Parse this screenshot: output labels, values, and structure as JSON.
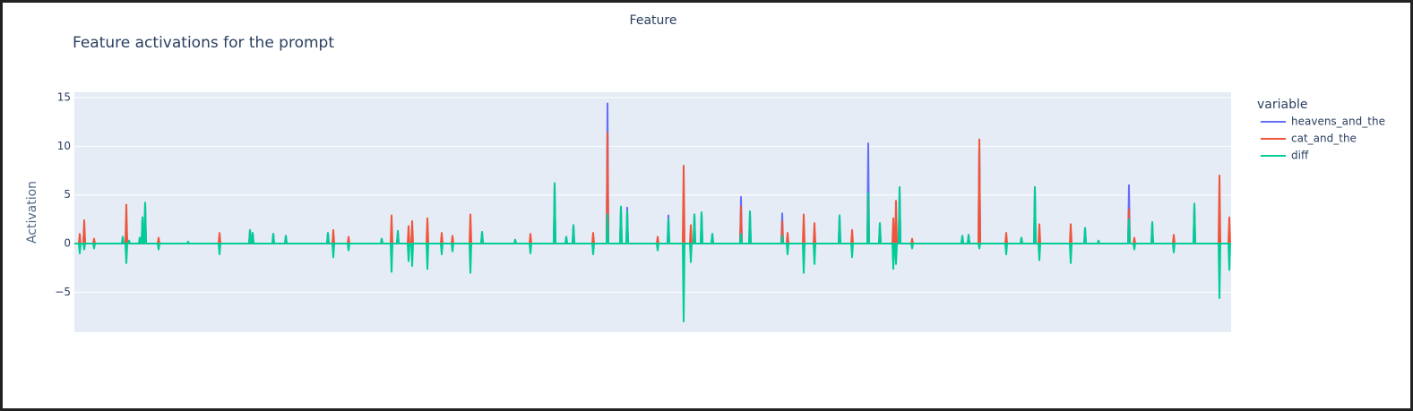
{
  "chart_data": {
    "type": "line",
    "title": "Feature activations for the prompt",
    "x_label": "Feature",
    "y_label": "Activation",
    "legend_title": "variable",
    "legend_position": "right",
    "grid": true,
    "xlim": [
      0,
      1291
    ],
    "ylim": [
      -9.1,
      15.55
    ],
    "yticks": [
      {
        "value": -5,
        "label": "−5"
      },
      0,
      5,
      10,
      15
    ],
    "x": [
      0,
      5,
      6,
      7,
      10,
      11,
      12,
      21,
      22,
      23,
      53,
      54,
      55,
      57,
      58,
      59,
      60,
      61,
      62,
      72,
      73,
      74,
      75,
      76,
      77,
      78,
      79,
      80,
      93,
      94,
      95,
      126,
      127,
      128,
      161,
      162,
      163,
      195,
      196,
      197,
      198,
      199,
      200,
      221,
      222,
      223,
      235,
      236,
      237,
      282,
      283,
      284,
      288,
      289,
      290,
      305,
      306,
      307,
      342,
      343,
      344,
      353,
      354,
      355,
      360,
      361,
      362,
      372,
      373,
      374,
      376,
      377,
      378,
      393,
      394,
      395,
      409,
      410,
      411,
      421,
      422,
      423,
      441,
      442,
      443,
      454,
      455,
      456,
      491,
      492,
      493,
      508,
      509,
      510,
      535,
      536,
      537,
      548,
      549,
      550,
      556,
      557,
      558,
      578,
      579,
      580,
      594,
      595,
      596,
      609,
      610,
      611,
      616,
      617,
      618,
      650,
      651,
      652,
      662,
      663,
      664,
      679,
      680,
      681,
      687,
      688,
      689,
      691,
      692,
      693,
      699,
      700,
      701,
      711,
      712,
      713,
      743,
      744,
      745,
      753,
      754,
      755,
      789,
      790,
      791,
      795,
      796,
      797,
      813,
      814,
      815,
      825,
      826,
      827,
      853,
      854,
      855,
      867,
      868,
      869,
      885,
      886,
      887,
      898,
      899,
      900,
      913,
      914,
      915,
      916,
      917,
      918,
      920,
      921,
      922,
      934,
      935,
      936,
      990,
      991,
      992,
      997,
      998,
      999,
      1009,
      1010,
      1011,
      1039,
      1040,
      1041,
      1056,
      1057,
      1058,
      1071,
      1072,
      1073,
      1076,
      1077,
      1078,
      1111,
      1112,
      1113,
      1127,
      1128,
      1129,
      1142,
      1143,
      1144,
      1176,
      1177,
      1178,
      1182,
      1183,
      1184,
      1202,
      1203,
      1204,
      1226,
      1227,
      1228,
      1249,
      1250,
      1251,
      1277,
      1278,
      1279,
      1288,
      1289,
      1290,
      1291
    ],
    "series": [
      {
        "name": "heavens_and_the",
        "color": "#636efa",
        "values": [
          0,
          0,
          0,
          0,
          0,
          1.8,
          0,
          0,
          0,
          0,
          0,
          0.7,
          0,
          0,
          2,
          0,
          0,
          0.3,
          0,
          0,
          0.6,
          0,
          0,
          2.7,
          0,
          0,
          4.2,
          0,
          0,
          0,
          0,
          0,
          0.2,
          0,
          0,
          0,
          0,
          0,
          1.4,
          0,
          0,
          1.1,
          0,
          0,
          1,
          0,
          0,
          0.8,
          0,
          0,
          1.1,
          0,
          0,
          0,
          0,
          0,
          0,
          0,
          0,
          0.5,
          0,
          0,
          0,
          0,
          0,
          1.3,
          0,
          0,
          0,
          0,
          0,
          0,
          0,
          0,
          0,
          0,
          0,
          0,
          0,
          0,
          0,
          0,
          0,
          0,
          0,
          0,
          1.2,
          0,
          0,
          0.4,
          0,
          0,
          0,
          0,
          0,
          6.2,
          0,
          0,
          0.7,
          0,
          0,
          1.9,
          0,
          0,
          0,
          0,
          0,
          14.4,
          0,
          0,
          3.8,
          0,
          0,
          3.7,
          0,
          0,
          0,
          0,
          0,
          2.9,
          0,
          0,
          0,
          0,
          0,
          0,
          0,
          0,
          3,
          0,
          0,
          3.2,
          0,
          0,
          1,
          0,
          0,
          4.8,
          0,
          0,
          3.3,
          0,
          0,
          3.1,
          0,
          0,
          0,
          0,
          0,
          0,
          0,
          0,
          0,
          0,
          0,
          2.9,
          0,
          0,
          0,
          0,
          0,
          10.3,
          0,
          0,
          2.1,
          0,
          0,
          0,
          0,
          0,
          2.3,
          0,
          0,
          5.8,
          0,
          0,
          0,
          0,
          0,
          0.8,
          0,
          0,
          0.9,
          0,
          0,
          10.2,
          0,
          0,
          0,
          0,
          0,
          0.6,
          0,
          0,
          5.8,
          0,
          0,
          0.3,
          0,
          0,
          0,
          0,
          0,
          1.6,
          0,
          0,
          0.3,
          0,
          0,
          6,
          0,
          0,
          0,
          0,
          0,
          2.2,
          0,
          0,
          0,
          0,
          0,
          4.1,
          0,
          0,
          1.4,
          0,
          0,
          0,
          0,
          0
        ]
      },
      {
        "name": "cat_and_the",
        "color": "#ef553b",
        "values": [
          0,
          0,
          1,
          0,
          0,
          2.4,
          0,
          0,
          0.5,
          0,
          0,
          0,
          0,
          0,
          4,
          0,
          0,
          0,
          0,
          0,
          0,
          0,
          0,
          0,
          0,
          0,
          0,
          0,
          0,
          0.6,
          0,
          0,
          0,
          0,
          0,
          1.1,
          0,
          0,
          0,
          0,
          0,
          0,
          0,
          0,
          0,
          0,
          0,
          0,
          0,
          0,
          0,
          0,
          0,
          1.4,
          0,
          0,
          0.7,
          0,
          0,
          0,
          0,
          0,
          2.9,
          0,
          0,
          0,
          0,
          0,
          1.8,
          0,
          0,
          2.3,
          0,
          0,
          2.6,
          0,
          0,
          1.1,
          0,
          0,
          0.8,
          0,
          0,
          3,
          0,
          0,
          0,
          0,
          0,
          0,
          0,
          0,
          1,
          0,
          0,
          0,
          0,
          0,
          0,
          0,
          0,
          0,
          0,
          0,
          1.1,
          0,
          0,
          11.4,
          0,
          0,
          0,
          0,
          0,
          0.4,
          0,
          0,
          0.7,
          0,
          0,
          0.4,
          0,
          0,
          8,
          0,
          0,
          1.9,
          0,
          0,
          0,
          0,
          0,
          0,
          0,
          0,
          0,
          0,
          0,
          3.8,
          0,
          0,
          0,
          0,
          0,
          2.3,
          0,
          0,
          1.1,
          0,
          0,
          3,
          0,
          0,
          2.1,
          0,
          0,
          0,
          0,
          0,
          1.4,
          0,
          0,
          5.1,
          0,
          0,
          0,
          0,
          0,
          2.6,
          0,
          0,
          4.4,
          0,
          0,
          0,
          0,
          0,
          0.5,
          0,
          0,
          0,
          0,
          0,
          0,
          0,
          0,
          10.7,
          0,
          0,
          1.1,
          0,
          0,
          0,
          0,
          0,
          0,
          0,
          0,
          2,
          0,
          0,
          2,
          0,
          0,
          0,
          0,
          0,
          0,
          0,
          0,
          3.5,
          0,
          0,
          0.6,
          0,
          0,
          0,
          0,
          0,
          0.9,
          0,
          0,
          0,
          0,
          0,
          7,
          0,
          0,
          2.7,
          0,
          0
        ]
      },
      {
        "name": "diff",
        "color": "#00cc96",
        "values": [
          0,
          0,
          -1,
          0,
          0,
          -0.6,
          0,
          0,
          -0.5,
          0,
          0,
          0.7,
          0,
          0,
          -2,
          0,
          0,
          0.3,
          0,
          0,
          0.6,
          0,
          0,
          2.7,
          0,
          0,
          4.2,
          0,
          0,
          -0.6,
          0,
          0,
          0.2,
          0,
          0,
          -1.1,
          0,
          0,
          1.4,
          0,
          0,
          1.1,
          0,
          0,
          1,
          0,
          0,
          0.8,
          0,
          0,
          1.1,
          0,
          0,
          -1.4,
          0,
          0,
          -0.7,
          0,
          0,
          0.5,
          0,
          0,
          -2.9,
          0,
          0,
          1.3,
          0,
          0,
          -1.8,
          0,
          0,
          -2.3,
          0,
          0,
          -2.6,
          0,
          0,
          -1.1,
          0,
          0,
          -0.8,
          0,
          0,
          -3,
          0,
          0,
          1.2,
          0,
          0,
          0.4,
          0,
          0,
          -1,
          0,
          0,
          6.2,
          0,
          0,
          0.7,
          0,
          0,
          1.9,
          0,
          0,
          -1.1,
          0,
          0,
          3,
          0,
          0,
          3.8,
          0,
          0,
          3.3,
          0,
          0,
          -0.7,
          0,
          0,
          2.5,
          0,
          0,
          -8,
          0,
          0,
          -1.9,
          0,
          0,
          3,
          0,
          0,
          3.2,
          0,
          0,
          1,
          0,
          0,
          1,
          0,
          0,
          3.3,
          0,
          0,
          0.8,
          0,
          0,
          -1.1,
          0,
          0,
          -3,
          0,
          0,
          -2.1,
          0,
          0,
          2.9,
          0,
          0,
          -1.4,
          0,
          0,
          5.2,
          0,
          0,
          2.1,
          0,
          0,
          -2.6,
          0,
          0,
          -2.1,
          0,
          0,
          5.8,
          0,
          0,
          -0.5,
          0,
          0,
          0.8,
          0,
          0,
          0.9,
          0,
          0,
          -0.5,
          0,
          0,
          -1.1,
          0,
          0,
          0.6,
          0,
          0,
          5.8,
          0,
          0,
          -1.7,
          0,
          0,
          -2,
          0,
          0,
          1.6,
          0,
          0,
          0.3,
          0,
          0,
          2.5,
          0,
          0,
          -0.6,
          0,
          0,
          2.2,
          0,
          0,
          -0.9,
          0,
          0,
          4.1,
          0,
          0,
          -5.6,
          0,
          0,
          -2.7,
          0,
          0
        ]
      }
    ]
  }
}
